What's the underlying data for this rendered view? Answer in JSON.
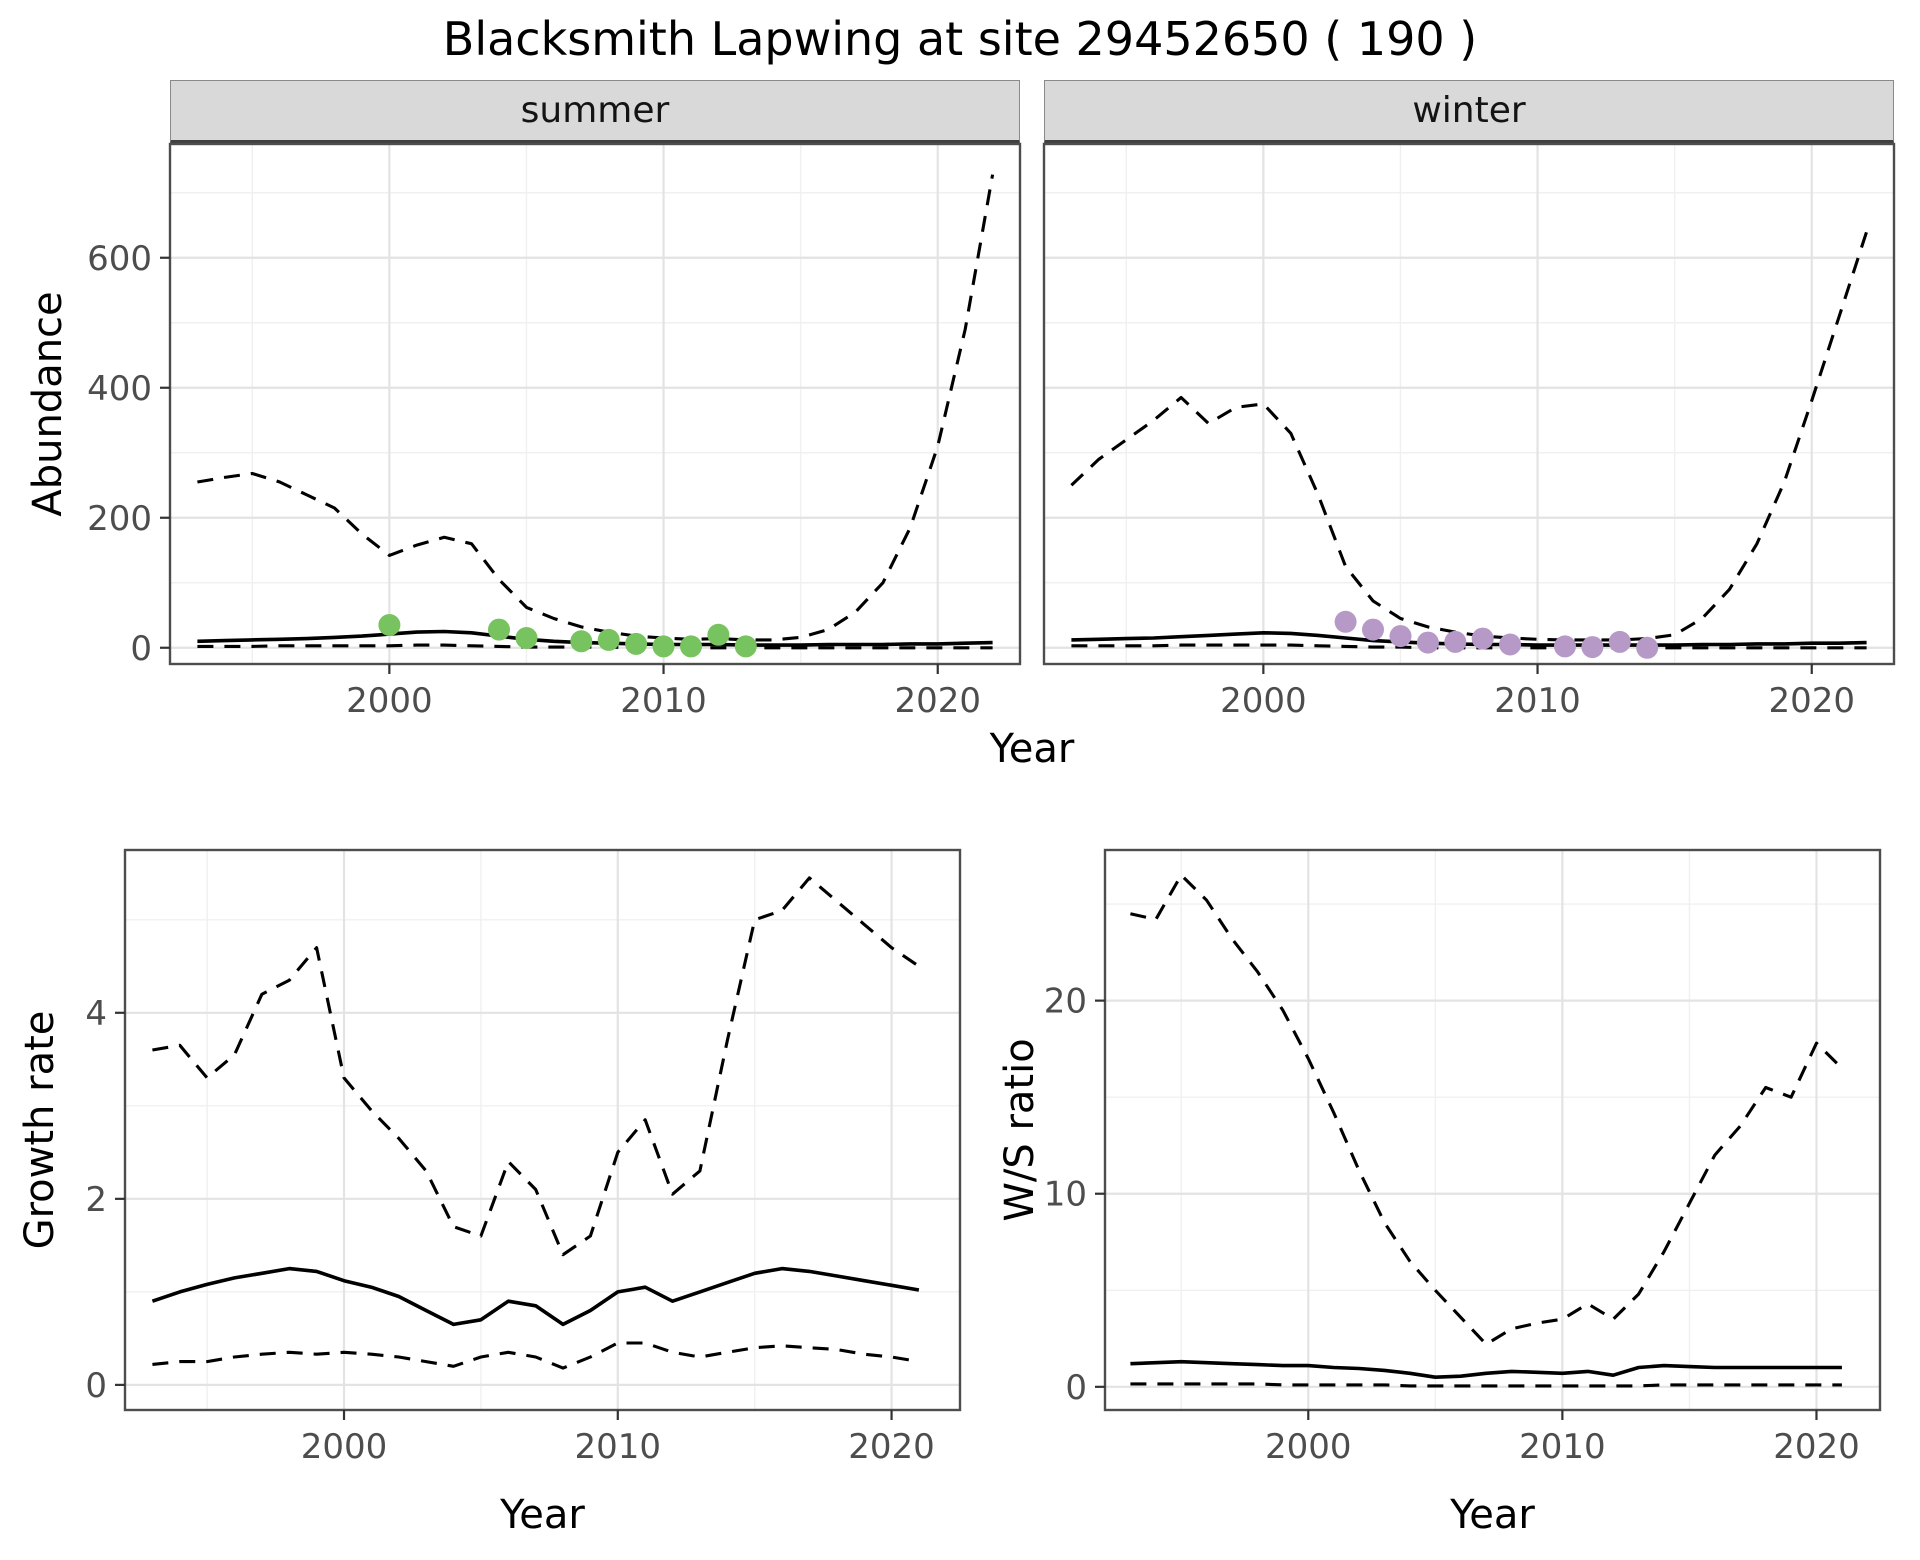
{
  "title": "Blacksmith Lapwing at site 29452650 ( 190 )",
  "colors": {
    "summer_point": "#77c35f",
    "winter_point": "#b699c7",
    "line": "#000000",
    "strip_bg": "#d9d9d9",
    "grid_major": "#e3e3e3",
    "grid_minor": "#f0f0f0",
    "panel_border": "#4d4d4d",
    "tick_text": "#4d4d4d"
  },
  "chart_data": [
    {
      "type": "line",
      "facet": "summer",
      "xlabel": "Year",
      "ylabel": "Abundance",
      "xlim": [
        1992,
        2023
      ],
      "ylim": [
        -25,
        775
      ],
      "xticks": [
        2000,
        2010,
        2020
      ],
      "xminor": [
        1995,
        2005,
        2015
      ],
      "yticks": [
        0,
        200,
        400,
        600
      ],
      "yminor": [
        100,
        300,
        500,
        700
      ],
      "grid": true,
      "legend": "none",
      "x": [
        1993,
        1994,
        1995,
        1996,
        1997,
        1998,
        1999,
        2000,
        2001,
        2002,
        2003,
        2004,
        2005,
        2006,
        2007,
        2008,
        2009,
        2010,
        2011,
        2012,
        2013,
        2014,
        2015,
        2016,
        2017,
        2018,
        2019,
        2020,
        2021,
        2022
      ],
      "series": [
        {
          "name": "upper_ci",
          "style": "dashed",
          "y": [
            255,
            262,
            268,
            255,
            235,
            215,
            175,
            142,
            158,
            170,
            160,
            105,
            62,
            45,
            32,
            24,
            18,
            15,
            13,
            14,
            12,
            12,
            16,
            28,
            55,
            100,
            185,
            310,
            490,
            728
          ]
        },
        {
          "name": "median",
          "style": "solid",
          "y": [
            10,
            11,
            12,
            13,
            14,
            16,
            18,
            21,
            24,
            25,
            23,
            18,
            13,
            10,
            8,
            7,
            6,
            5,
            5,
            5,
            4,
            4,
            4,
            5,
            5,
            5,
            6,
            6,
            7,
            8
          ]
        },
        {
          "name": "lower_ci",
          "style": "dashed",
          "y": [
            2,
            2,
            2,
            3,
            3,
            3,
            3,
            3,
            4,
            4,
            3,
            2,
            1,
            1,
            1,
            1,
            0,
            0,
            0,
            0,
            0,
            0,
            0,
            0,
            0,
            0,
            0,
            0,
            0,
            0
          ]
        }
      ],
      "points": {
        "name": "summer-observations",
        "color": "summer_point",
        "x": [
          2000,
          2004,
          2005,
          2007,
          2008,
          2009,
          2010,
          2011,
          2012,
          2013
        ],
        "y": [
          35,
          28,
          15,
          10,
          12,
          6,
          2,
          2,
          20,
          2
        ]
      }
    },
    {
      "type": "line",
      "facet": "winter",
      "xlabel": "Year",
      "ylabel": "Abundance",
      "xlim": [
        1992,
        2023
      ],
      "ylim": [
        -25,
        775
      ],
      "xticks": [
        2000,
        2010,
        2020
      ],
      "xminor": [
        1995,
        2005,
        2015
      ],
      "yticks": [
        0,
        200,
        400,
        600
      ],
      "yminor": [
        100,
        300,
        500,
        700
      ],
      "grid": true,
      "legend": "none",
      "x": [
        1993,
        1994,
        1995,
        1996,
        1997,
        1998,
        1999,
        2000,
        2001,
        2002,
        2003,
        2004,
        2005,
        2006,
        2007,
        2008,
        2009,
        2010,
        2011,
        2012,
        2013,
        2014,
        2015,
        2016,
        2017,
        2018,
        2019,
        2020,
        2021,
        2022
      ],
      "series": [
        {
          "name": "upper_ci",
          "style": "dashed",
          "y": [
            250,
            290,
            320,
            350,
            385,
            345,
            370,
            375,
            330,
            235,
            125,
            72,
            45,
            32,
            24,
            18,
            15,
            13,
            12,
            12,
            12,
            14,
            20,
            45,
            90,
            160,
            255,
            380,
            510,
            640
          ]
        },
        {
          "name": "median",
          "style": "solid",
          "y": [
            12,
            13,
            14,
            15,
            17,
            19,
            21,
            23,
            22,
            19,
            15,
            11,
            9,
            7,
            6,
            5,
            5,
            4,
            4,
            4,
            4,
            4,
            4,
            5,
            5,
            6,
            6,
            7,
            7,
            8
          ]
        },
        {
          "name": "lower_ci",
          "style": "dashed",
          "y": [
            3,
            3,
            3,
            3,
            4,
            4,
            4,
            4,
            4,
            3,
            2,
            1,
            1,
            0,
            0,
            0,
            0,
            0,
            0,
            0,
            0,
            0,
            0,
            0,
            0,
            0,
            0,
            0,
            0,
            0
          ]
        }
      ],
      "points": {
        "name": "winter-observations",
        "color": "winter_point",
        "x": [
          2003,
          2004,
          2005,
          2006,
          2007,
          2008,
          2009,
          2011,
          2012,
          2013,
          2014
        ],
        "y": [
          40,
          28,
          18,
          8,
          9,
          14,
          5,
          2,
          1,
          9,
          0
        ]
      }
    },
    {
      "type": "line",
      "facet": "",
      "xlabel": "Year",
      "ylabel": "Growth rate",
      "xlim": [
        1992,
        2022.5
      ],
      "ylim": [
        -0.27,
        5.75
      ],
      "xticks": [
        2000,
        2010,
        2020
      ],
      "xminor": [
        1995,
        2005,
        2015
      ],
      "yticks": [
        0,
        2,
        4
      ],
      "yminor": [
        1,
        3,
        5
      ],
      "grid": true,
      "legend": "none",
      "x": [
        1993,
        1994,
        1995,
        1996,
        1997,
        1998,
        1999,
        2000,
        2001,
        2002,
        2003,
        2004,
        2005,
        2006,
        2007,
        2008,
        2009,
        2010,
        2011,
        2012,
        2013,
        2014,
        2015,
        2016,
        2017,
        2018,
        2019,
        2020,
        2021
      ],
      "series": [
        {
          "name": "upper_ci",
          "style": "dashed",
          "y": [
            3.6,
            3.65,
            3.3,
            3.55,
            4.2,
            4.35,
            4.7,
            3.3,
            2.95,
            2.65,
            2.3,
            1.7,
            1.6,
            2.4,
            2.1,
            1.4,
            1.6,
            2.5,
            2.85,
            2.05,
            2.3,
            3.7,
            5.0,
            5.1,
            5.45,
            5.2,
            4.95,
            4.7,
            4.5
          ]
        },
        {
          "name": "median",
          "style": "solid",
          "y": [
            0.9,
            1.0,
            1.08,
            1.15,
            1.2,
            1.25,
            1.22,
            1.12,
            1.05,
            0.95,
            0.8,
            0.65,
            0.7,
            0.9,
            0.85,
            0.65,
            0.8,
            1.0,
            1.05,
            0.9,
            1.0,
            1.1,
            1.2,
            1.25,
            1.22,
            1.17,
            1.12,
            1.07,
            1.02
          ]
        },
        {
          "name": "lower_ci",
          "style": "dashed",
          "y": [
            0.22,
            0.25,
            0.25,
            0.3,
            0.33,
            0.35,
            0.33,
            0.35,
            0.33,
            0.3,
            0.25,
            0.2,
            0.3,
            0.35,
            0.3,
            0.18,
            0.3,
            0.45,
            0.45,
            0.35,
            0.3,
            0.35,
            0.4,
            0.42,
            0.4,
            0.38,
            0.33,
            0.3,
            0.25
          ]
        }
      ]
    },
    {
      "type": "line",
      "facet": "",
      "xlabel": "Year",
      "ylabel": "W/S ratio",
      "xlim": [
        1992,
        2022.5
      ],
      "ylim": [
        -1.2,
        27.8
      ],
      "xticks": [
        2000,
        2010,
        2020
      ],
      "xminor": [
        1995,
        2005,
        2015
      ],
      "yticks": [
        0,
        10,
        20
      ],
      "yminor": [
        5,
        15,
        25
      ],
      "grid": true,
      "legend": "none",
      "x": [
        1993,
        1994,
        1995,
        1996,
        1997,
        1998,
        1999,
        2000,
        2001,
        2002,
        2003,
        2004,
        2005,
        2006,
        2007,
        2008,
        2009,
        2010,
        2011,
        2012,
        2013,
        2014,
        2015,
        2016,
        2017,
        2018,
        2019,
        2020,
        2021
      ],
      "series": [
        {
          "name": "upper_ci",
          "style": "dashed",
          "y": [
            24.5,
            24.2,
            26.5,
            25.2,
            23.2,
            21.5,
            19.5,
            17.0,
            14.2,
            11.2,
            8.5,
            6.5,
            5.0,
            3.6,
            2.2,
            3.0,
            3.3,
            3.5,
            4.3,
            3.5,
            4.8,
            7.0,
            9.5,
            12.0,
            13.5,
            15.5,
            15.0,
            17.8,
            16.5
          ]
        },
        {
          "name": "median",
          "style": "solid",
          "y": [
            1.2,
            1.25,
            1.3,
            1.25,
            1.2,
            1.15,
            1.1,
            1.1,
            1.0,
            0.95,
            0.85,
            0.7,
            0.5,
            0.55,
            0.7,
            0.8,
            0.75,
            0.7,
            0.8,
            0.6,
            1.0,
            1.1,
            1.05,
            1.0,
            1.0,
            1.0,
            1.0,
            1.0,
            1.0
          ]
        },
        {
          "name": "lower_ci",
          "style": "dashed",
          "y": [
            0.15,
            0.15,
            0.15,
            0.15,
            0.15,
            0.15,
            0.1,
            0.1,
            0.1,
            0.1,
            0.1,
            0.05,
            0.05,
            0.05,
            0.05,
            0.05,
            0.05,
            0.05,
            0.05,
            0.05,
            0.05,
            0.1,
            0.1,
            0.1,
            0.1,
            0.1,
            0.1,
            0.1,
            0.1
          ]
        }
      ]
    }
  ]
}
